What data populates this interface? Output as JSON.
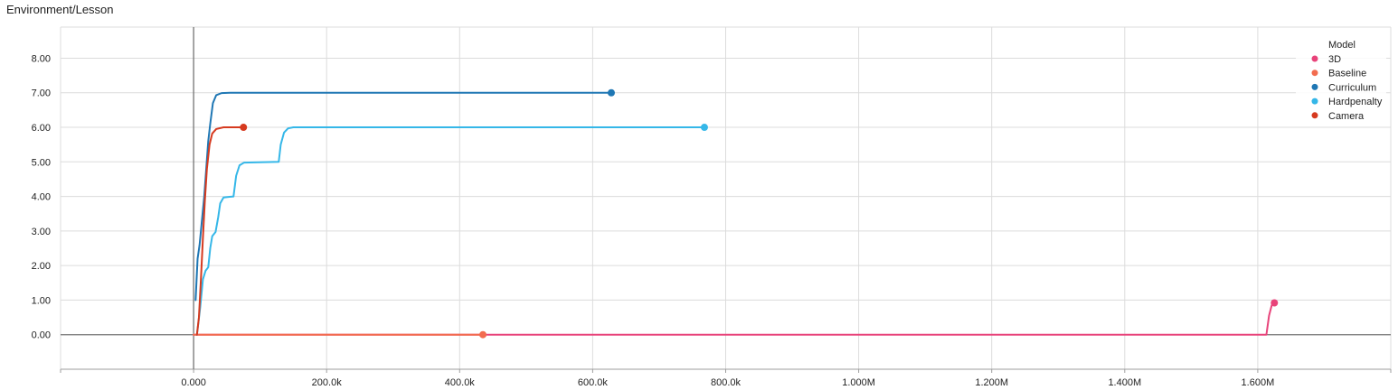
{
  "chart_data": {
    "type": "line",
    "title": "Environment/Lesson",
    "xlabel": "",
    "ylabel": "",
    "xlim": [
      -200000,
      1800000
    ],
    "ylim": [
      -1.0,
      8.9
    ],
    "x_ticks": [
      0,
      200000,
      400000,
      600000,
      800000,
      1000000,
      1200000,
      1400000,
      1600000
    ],
    "x_tick_labels": [
      "0.000",
      "200.0k",
      "400.0k",
      "600.0k",
      "800.0k",
      "1.000M",
      "1.200M",
      "1.400M",
      "1.600M"
    ],
    "y_ticks": [
      0,
      1,
      2,
      3,
      4,
      5,
      6,
      7,
      8
    ],
    "y_tick_labels": [
      "0.00",
      "1.00",
      "2.00",
      "3.00",
      "4.00",
      "5.00",
      "6.00",
      "7.00",
      "8.00"
    ],
    "grid": true,
    "legend_placement": "top-right",
    "legend_title": "Model",
    "series": [
      {
        "name": "3D",
        "color": "#e8437a",
        "points": [
          [
            0,
            0
          ],
          [
            1613000,
            0
          ],
          [
            1617000,
            0.55
          ],
          [
            1621000,
            0.85
          ],
          [
            1625000,
            0.92
          ]
        ]
      },
      {
        "name": "Baseline",
        "color": "#f26c4f",
        "points": [
          [
            0,
            0
          ],
          [
            435000,
            0
          ]
        ]
      },
      {
        "name": "Curriculum",
        "color": "#1f77b4",
        "points": [
          [
            3000,
            1.0
          ],
          [
            6000,
            2.2
          ],
          [
            9000,
            2.6
          ],
          [
            12000,
            3.2
          ],
          [
            16000,
            4.0
          ],
          [
            19000,
            4.8
          ],
          [
            22000,
            5.6
          ],
          [
            25000,
            6.1
          ],
          [
            29000,
            6.7
          ],
          [
            34000,
            6.93
          ],
          [
            42000,
            6.99
          ],
          [
            55000,
            7.0
          ],
          [
            628000,
            7.0
          ]
        ]
      },
      {
        "name": "Hardpenalty",
        "color": "#35b7e8",
        "points": [
          [
            5000,
            0
          ],
          [
            10000,
            0.8
          ],
          [
            14000,
            1.6
          ],
          [
            18000,
            1.85
          ],
          [
            22000,
            1.95
          ],
          [
            25000,
            2.5
          ],
          [
            28000,
            2.85
          ],
          [
            33000,
            2.97
          ],
          [
            37000,
            3.4
          ],
          [
            40000,
            3.8
          ],
          [
            45000,
            3.97
          ],
          [
            60000,
            4.0
          ],
          [
            64000,
            4.6
          ],
          [
            69000,
            4.9
          ],
          [
            76000,
            4.98
          ],
          [
            128000,
            5.0
          ],
          [
            131000,
            5.5
          ],
          [
            136000,
            5.85
          ],
          [
            142000,
            5.97
          ],
          [
            150000,
            6.0
          ],
          [
            768000,
            6.0
          ]
        ]
      },
      {
        "name": "Camera",
        "color": "#d63a1f",
        "points": [
          [
            5000,
            0
          ],
          [
            8000,
            0.5
          ],
          [
            11000,
            1.6
          ],
          [
            14000,
            2.8
          ],
          [
            17000,
            3.9
          ],
          [
            20000,
            4.8
          ],
          [
            24000,
            5.5
          ],
          [
            28000,
            5.82
          ],
          [
            34000,
            5.95
          ],
          [
            45000,
            6.0
          ],
          [
            75000,
            6.0
          ]
        ]
      }
    ]
  }
}
